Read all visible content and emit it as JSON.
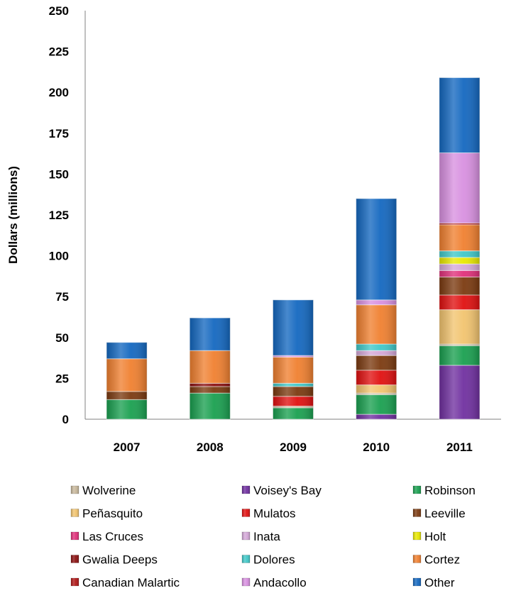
{
  "chart_data": {
    "type": "bar",
    "stacked": true,
    "title": "",
    "xlabel": "",
    "ylabel": "Dollars (millions)",
    "ylim": [
      0,
      250
    ],
    "yticks": [
      0,
      25,
      50,
      75,
      100,
      125,
      150,
      175,
      200,
      225,
      250
    ],
    "categories": [
      "2007",
      "2008",
      "2009",
      "2010",
      "2011"
    ],
    "grid": false,
    "legend_position": "bottom",
    "series": [
      {
        "name": "Voisey's Bay",
        "color": "#7030a0",
        "values": [
          0,
          0,
          0,
          3,
          33
        ]
      },
      {
        "name": "Robinson",
        "color": "#1aa050",
        "values": [
          12,
          16,
          7,
          12,
          12
        ]
      },
      {
        "name": "Wolverine",
        "color": "#c8b89c",
        "values": [
          0,
          0,
          1,
          1,
          1
        ]
      },
      {
        "name": "Peñasquito",
        "color": "#f2c46f",
        "values": [
          0,
          0,
          0,
          5,
          21
        ]
      },
      {
        "name": "Mulatos",
        "color": "#e01010",
        "values": [
          0,
          0,
          6,
          9,
          9
        ]
      },
      {
        "name": "Leeville",
        "color": "#7b3a10",
        "values": [
          5,
          4,
          6,
          9,
          11
        ]
      },
      {
        "name": "Las Cruces",
        "color": "#e0307a",
        "values": [
          0,
          0,
          0,
          0,
          4
        ]
      },
      {
        "name": "Inata",
        "color": "#d4a8d8",
        "values": [
          0,
          0,
          0,
          3,
          4
        ]
      },
      {
        "name": "Holt",
        "color": "#e8e800",
        "values": [
          0,
          0,
          0,
          0,
          4
        ]
      },
      {
        "name": "Gwalia Deeps",
        "color": "#8b1010",
        "values": [
          0,
          2,
          0,
          0,
          0
        ]
      },
      {
        "name": "Dolores",
        "color": "#40c8c8",
        "values": [
          0,
          0,
          2,
          4,
          4
        ]
      },
      {
        "name": "Cortez",
        "color": "#f08030",
        "values": [
          20,
          20,
          16,
          24,
          16
        ]
      },
      {
        "name": "Canadian Malartic",
        "color": "#b01818",
        "values": [
          0,
          0,
          0,
          0,
          1
        ]
      },
      {
        "name": "Andacollo",
        "color": "#d890e0",
        "values": [
          0,
          0,
          1,
          3,
          43
        ]
      },
      {
        "name": "Other",
        "color": "#1468c0",
        "values": [
          10,
          20,
          34,
          62,
          46
        ]
      }
    ],
    "legend_order": [
      "Wolverine",
      "Voisey's Bay",
      "Robinson",
      "Peñasquito",
      "Mulatos",
      "Leeville",
      "Las Cruces",
      "Inata",
      "Holt",
      "Gwalia Deeps",
      "Dolores",
      "Cortez",
      "Canadian Malartic",
      "Andacollo",
      "Other"
    ]
  }
}
